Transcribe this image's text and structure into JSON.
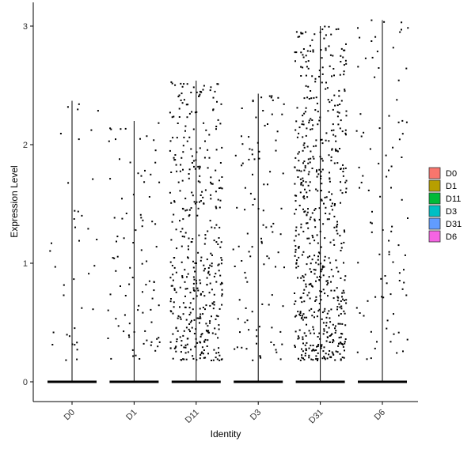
{
  "chart_data": {
    "type": "scatter",
    "subtype": "violin-jitter",
    "title": "",
    "xlabel": "Identity",
    "ylabel": "Expression Level",
    "ylim": [
      -0.18,
      3.05
    ],
    "yticks": [
      0,
      1,
      2,
      3
    ],
    "categories": [
      "D0",
      "D1",
      "D11",
      "D3",
      "D31",
      "D6"
    ],
    "violin_max": [
      2.37,
      2.2,
      2.54,
      2.43,
      3.0,
      3.05
    ],
    "nonzero_points": [
      38,
      90,
      420,
      105,
      620,
      95
    ],
    "zero_bulk_width": 0.4,
    "series": [
      {
        "name": "D0",
        "color": "#F8766D"
      },
      {
        "name": "D1",
        "color": "#B79F00"
      },
      {
        "name": "D11",
        "color": "#00BA38"
      },
      {
        "name": "D3",
        "color": "#00BFC4"
      },
      {
        "name": "D31",
        "color": "#619CFF"
      },
      {
        "name": "D6",
        "color": "#F564E3"
      }
    ],
    "legend_position": "right",
    "grid": false,
    "point_color": "#000000"
  }
}
